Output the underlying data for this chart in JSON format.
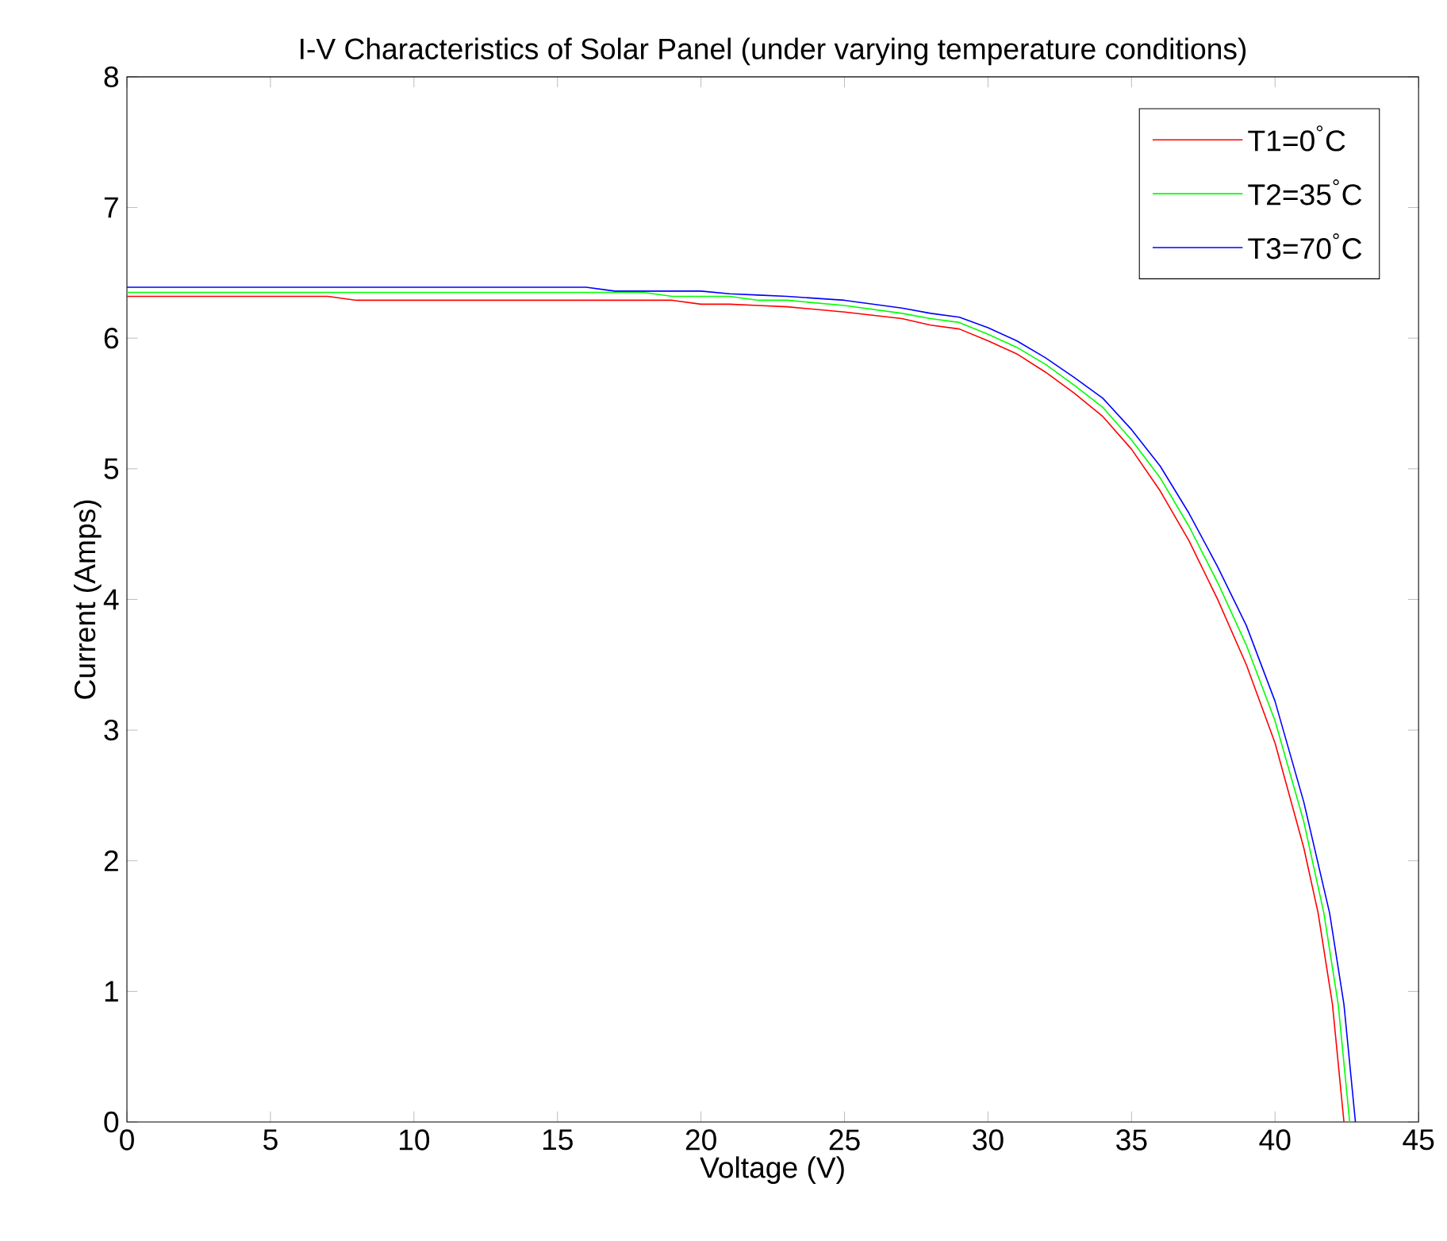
{
  "chart_data": {
    "type": "line",
    "title": "I-V Characteristics of Solar Panel (under varying temperature conditions)",
    "xlabel": "Voltage (V)",
    "ylabel": "Current (Amps)",
    "xlim": [
      0,
      45
    ],
    "ylim": [
      0,
      8
    ],
    "xticks": [
      0,
      5,
      10,
      15,
      20,
      25,
      30,
      35,
      40,
      45
    ],
    "yticks": [
      0,
      1,
      2,
      3,
      4,
      5,
      6,
      7,
      8
    ],
    "grid": false,
    "legend": "top right",
    "marker": "none",
    "line_style": "solid",
    "series": [
      {
        "name": "T1=0$^{°}$C",
        "color": "#ff0000",
        "x": [
          0,
          7,
          8,
          19,
          20,
          21,
          22,
          23,
          25,
          27,
          28,
          29,
          30,
          31,
          32,
          33,
          34,
          35,
          36,
          37,
          38,
          39,
          40,
          41,
          41.5,
          42,
          42.4
        ],
        "values": [
          6.32,
          6.32,
          6.29,
          6.29,
          6.26,
          6.26,
          6.25,
          6.24,
          6.2,
          6.15,
          6.1,
          6.07,
          5.98,
          5.88,
          5.74,
          5.58,
          5.4,
          5.15,
          4.83,
          4.45,
          4.0,
          3.5,
          2.9,
          2.1,
          1.6,
          0.9,
          0
        ]
      },
      {
        "name": "T2=35$^{°}$C",
        "color": "#00ff00",
        "x": [
          0,
          18,
          19,
          21,
          22,
          23,
          25,
          27,
          28,
          29,
          30,
          31,
          32,
          33,
          34,
          35,
          36,
          37,
          38,
          39,
          40,
          41,
          41.7,
          42.2,
          42.6
        ],
        "values": [
          6.35,
          6.35,
          6.32,
          6.32,
          6.29,
          6.29,
          6.25,
          6.19,
          6.15,
          6.12,
          6.03,
          5.93,
          5.8,
          5.64,
          5.47,
          5.22,
          4.93,
          4.56,
          4.13,
          3.65,
          3.07,
          2.3,
          1.6,
          0.9,
          0
        ]
      },
      {
        "name": "T3=70$^{°}$C",
        "color": "#0000ff",
        "x": [
          0,
          16,
          17,
          20,
          21,
          22,
          23,
          25,
          27,
          28,
          29,
          30,
          31,
          32,
          33,
          34,
          35,
          36,
          37,
          38,
          39,
          40,
          41,
          41.9,
          42.4,
          42.8
        ],
        "values": [
          6.39,
          6.39,
          6.36,
          6.36,
          6.34,
          6.33,
          6.32,
          6.29,
          6.23,
          6.19,
          6.16,
          6.08,
          5.98,
          5.85,
          5.7,
          5.54,
          5.3,
          5.02,
          4.66,
          4.25,
          3.8,
          3.22,
          2.45,
          1.6,
          0.9,
          0
        ]
      }
    ]
  }
}
